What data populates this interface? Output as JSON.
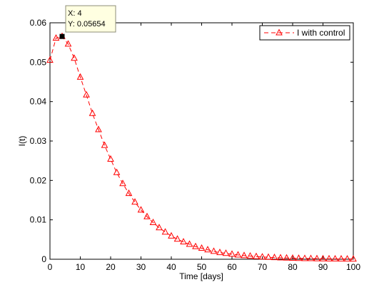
{
  "chart_data": {
    "type": "line",
    "xlabel": "Time [days]",
    "ylabel": "I(t)",
    "xlim": [
      0,
      100
    ],
    "ylim": [
      0,
      0.06
    ],
    "xticks": [
      "0",
      "10",
      "20",
      "30",
      "40",
      "50",
      "60",
      "70",
      "80",
      "90",
      "100"
    ],
    "yticks": [
      "0",
      "0.01",
      "0.02",
      "0.03",
      "0.04",
      "0.05",
      "0.06"
    ],
    "grid": false,
    "legend_position": "top-right",
    "series": [
      {
        "name": "I with control",
        "color": "#ff0000",
        "marker": "triangle",
        "linestyle": "dashed",
        "x": [
          0,
          2,
          4,
          6,
          8,
          10,
          12,
          14,
          16,
          18,
          20,
          22,
          24,
          26,
          28,
          30,
          32,
          34,
          36,
          38,
          40,
          42,
          44,
          46,
          48,
          50,
          52,
          54,
          56,
          58,
          60,
          62,
          64,
          66,
          68,
          70,
          72,
          74,
          76,
          78,
          80,
          82,
          84,
          86,
          88,
          90,
          92,
          94,
          96,
          98,
          100
        ],
        "y": [
          0.0505,
          0.0561,
          0.05654,
          0.0546,
          0.051,
          0.0462,
          0.0417,
          0.037,
          0.0329,
          0.0289,
          0.0254,
          0.022,
          0.0192,
          0.0167,
          0.0145,
          0.0125,
          0.0108,
          0.0093,
          0.008,
          0.0069,
          0.0059,
          0.0051,
          0.0044,
          0.0038,
          0.0032,
          0.0028,
          0.0024,
          0.002,
          0.0017,
          0.0015,
          0.00128,
          0.00109,
          0.00093,
          0.0008,
          0.00068,
          0.00058,
          0.0005,
          0.00043,
          0.00036,
          0.00031,
          0.00027,
          0.00023,
          0.00019,
          0.00017,
          0.00014,
          0.00012,
          0.0001,
          9e-05,
          7e-05,
          6e-05,
          5e-05
        ]
      }
    ],
    "datatip": {
      "x": 4,
      "y": 0.05654,
      "x_text": "X: 4",
      "y_text": "Y: 0.05654"
    }
  }
}
